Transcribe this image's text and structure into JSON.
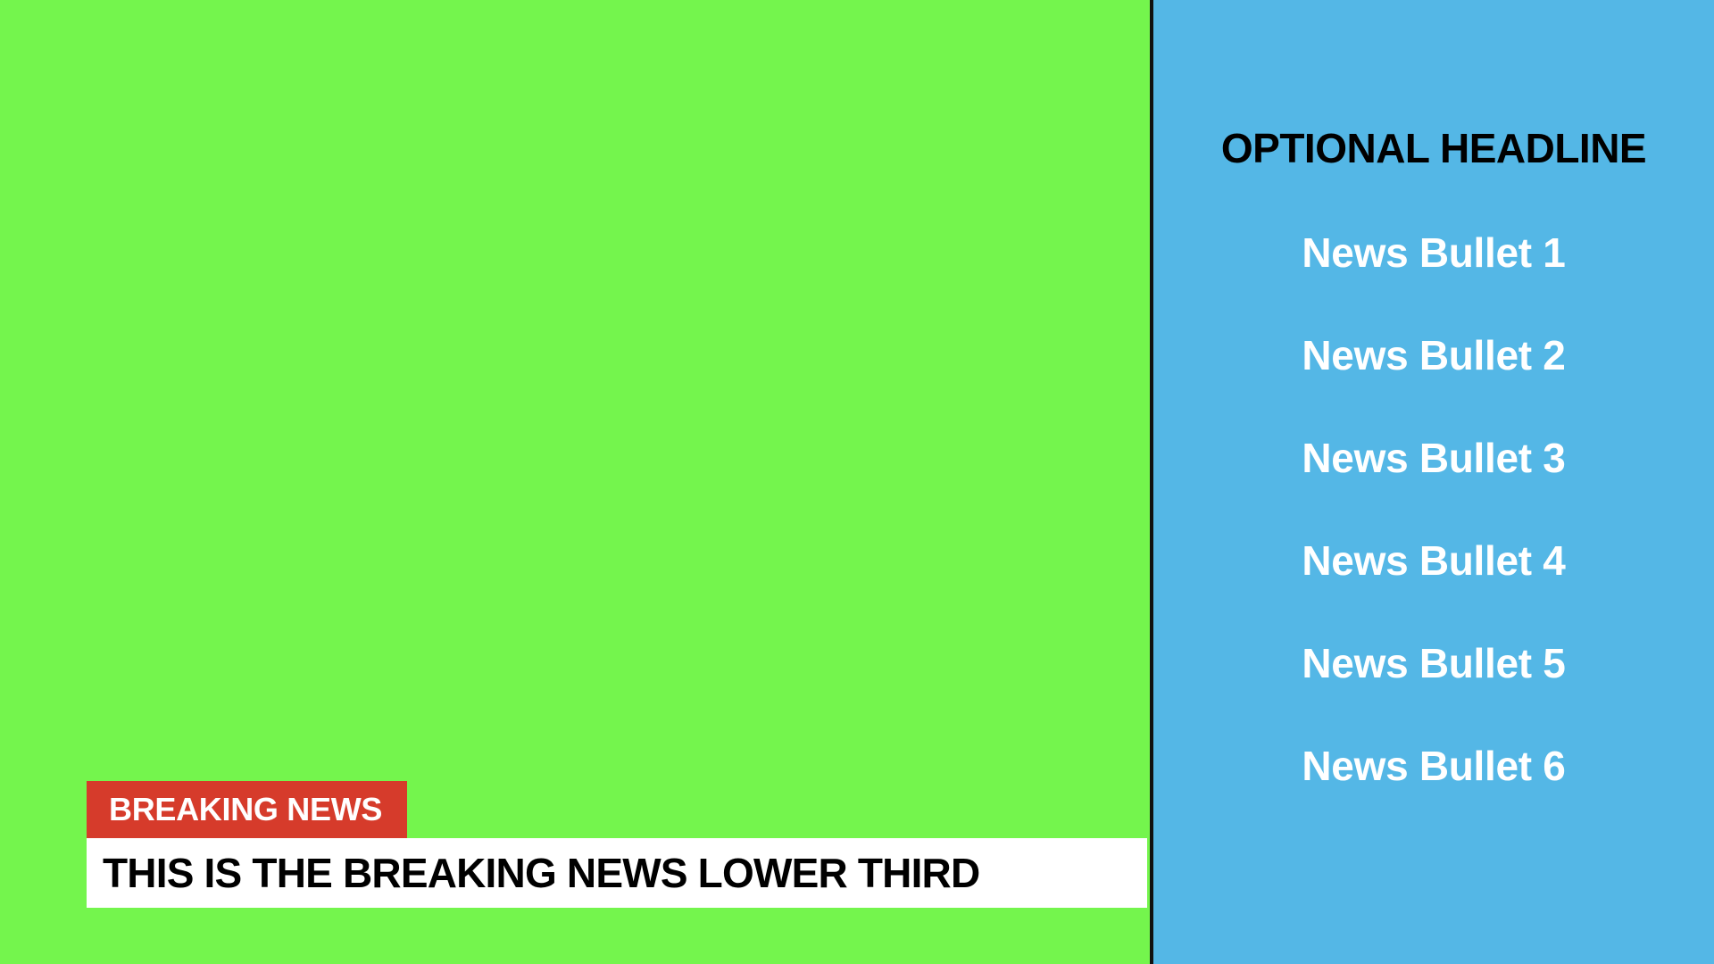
{
  "colors": {
    "green_screen": "#74f54d",
    "side_panel": "#54b7e6",
    "divider": "#111111",
    "breaking_tag": "#d63b2b",
    "lower_bar": "#ffffff"
  },
  "side_panel": {
    "headline": "OPTIONAL HEADLINE",
    "bullets": [
      "News Bullet 1",
      "News Bullet 2",
      "News Bullet 3",
      "News Bullet 4",
      "News Bullet 5",
      "News Bullet 6"
    ]
  },
  "lower_third": {
    "tag": "BREAKING NEWS",
    "text": "THIS IS THE BREAKING NEWS LOWER THIRD"
  }
}
